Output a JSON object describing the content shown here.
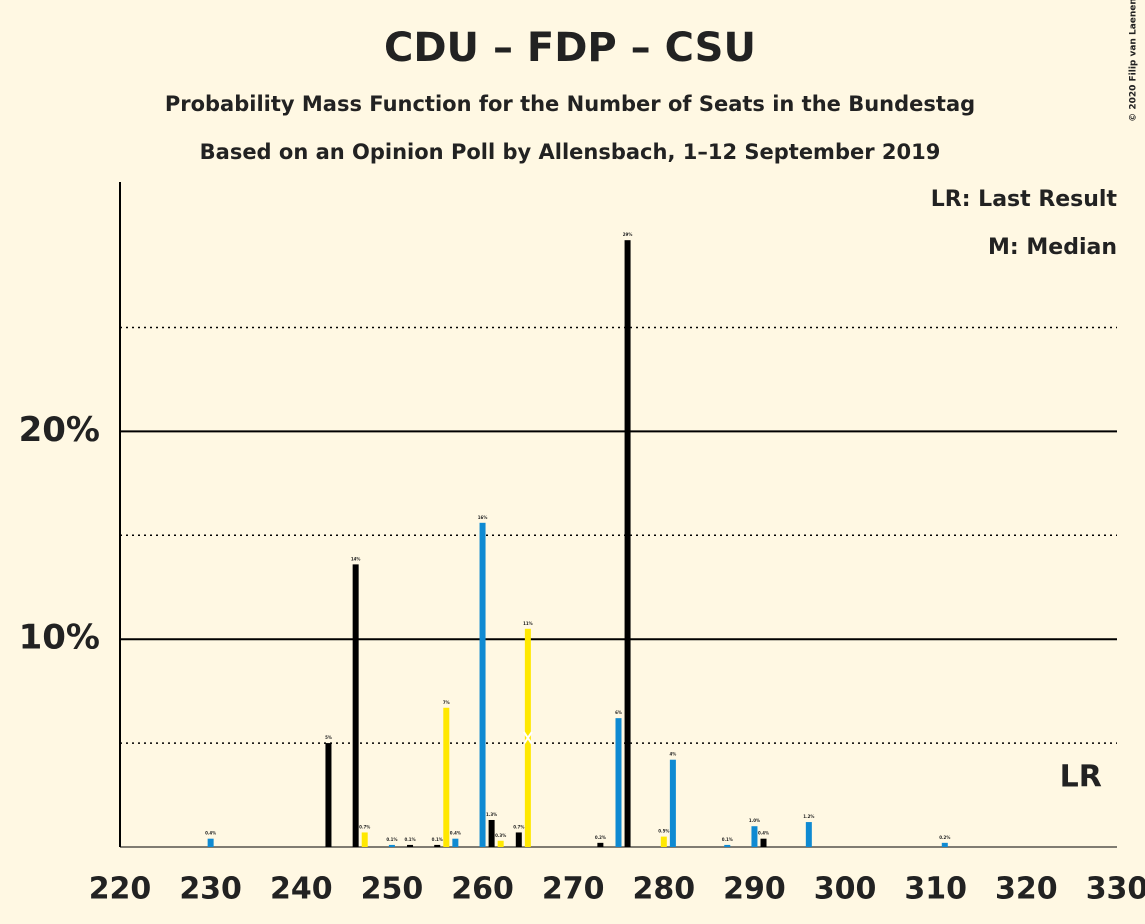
{
  "chart_data": {
    "type": "bar",
    "title": "CDU – FDP – CSU",
    "subtitle": "Probability Mass Function for the Number of Seats in the Bundestag",
    "subtitle2": "Based on an Opinion Poll by Allensbach, 1–12 September 2019",
    "copyright": "© 2020 Filip van Laenen",
    "legend_lr": "LR: Last Result",
    "legend_median": "M: Median",
    "lr_label": "LR",
    "last_result": 326,
    "median": 265,
    "x": [
      230,
      243,
      246,
      247,
      250,
      252,
      255,
      256,
      257,
      260,
      261,
      262,
      264,
      265,
      273,
      275,
      276,
      280,
      281,
      287,
      290,
      291,
      296,
      311
    ],
    "values": [
      0.4,
      5.0,
      13.6,
      0.7,
      0.1,
      0.1,
      0.1,
      6.7,
      0.4,
      15.6,
      1.3,
      0.3,
      0.7,
      10.5,
      0.2,
      6.2,
      29.2,
      0.5,
      4.2,
      0.1,
      1.0,
      0.4,
      1.2,
      0.2
    ],
    "value_labels": [
      "0.4%",
      "5%",
      "14%",
      "0.7%",
      "0.1%",
      "0.1%",
      "0.1%",
      "7%",
      "0.4%",
      "16%",
      "1.3%",
      "0.3%",
      "0.7%",
      "11%",
      "0.2%",
      "6%",
      "29%",
      "0.5%",
      "4%",
      "0.1%",
      "1.0%",
      "0.4%",
      "1.2%",
      "0.2%"
    ],
    "colors": [
      "#0f8ad2",
      "#000000",
      "#000000",
      "#ffe800",
      "#0f8ad2",
      "#000000",
      "#000000",
      "#ffe800",
      "#0f8ad2",
      "#0f8ad2",
      "#000000",
      "#ffe800",
      "#000000",
      "#ffe800",
      "#000000",
      "#0f8ad2",
      "#000000",
      "#ffe800",
      "#0f8ad2",
      "#0f8ad2",
      "#0f8ad2",
      "#000000",
      "#0f8ad2",
      "#0f8ad2"
    ],
    "xlim": [
      220,
      330
    ],
    "xticks": [
      220,
      230,
      240,
      250,
      260,
      270,
      280,
      290,
      300,
      310,
      320,
      330
    ],
    "ylim": [
      0,
      32
    ],
    "yticks": [
      {
        "value": 10,
        "label": "10%"
      },
      {
        "value": 20,
        "label": "20%"
      }
    ],
    "minor_yticks": [
      5,
      15,
      25
    ],
    "grid": true
  }
}
